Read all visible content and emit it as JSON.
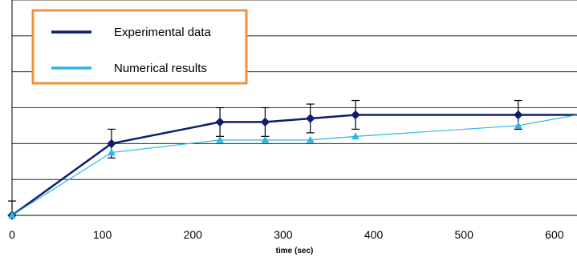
{
  "chart_data": {
    "type": "line",
    "title": "",
    "xlabel": "time (sec)",
    "ylabel": "",
    "xlim": [
      0,
      625
    ],
    "ylim": [
      0,
      6
    ],
    "x_ticks": [
      "0",
      "100",
      "200",
      "300",
      "400",
      "500",
      "600"
    ],
    "grid": "horizontal",
    "legend_position": "top-left",
    "legend_border_color": "#F0923A",
    "series": [
      {
        "name": "Experimental data",
        "color": "#0D1E6E",
        "marker": "diamond",
        "points": [
          {
            "x": 0,
            "y": 0,
            "err": 0.4
          },
          {
            "x": 110,
            "y": 2.0,
            "err": 0.4
          },
          {
            "x": 230,
            "y": 2.6,
            "err": 0.4
          },
          {
            "x": 280,
            "y": 2.6,
            "err": 0.4
          },
          {
            "x": 330,
            "y": 2.7,
            "err": 0.4
          },
          {
            "x": 380,
            "y": 2.8,
            "err": 0.4
          },
          {
            "x": 560,
            "y": 2.8,
            "err": 0.4
          },
          {
            "x": 625,
            "y": 2.8
          }
        ]
      },
      {
        "name": "Numerical results",
        "color": "#29B6E8",
        "marker": "triangle",
        "points": [
          {
            "x": 0,
            "y": 0
          },
          {
            "x": 110,
            "y": 1.75
          },
          {
            "x": 230,
            "y": 2.1
          },
          {
            "x": 280,
            "y": 2.1
          },
          {
            "x": 330,
            "y": 2.1
          },
          {
            "x": 380,
            "y": 2.2
          },
          {
            "x": 560,
            "y": 2.5
          },
          {
            "x": 625,
            "y": 2.8
          }
        ]
      }
    ]
  }
}
